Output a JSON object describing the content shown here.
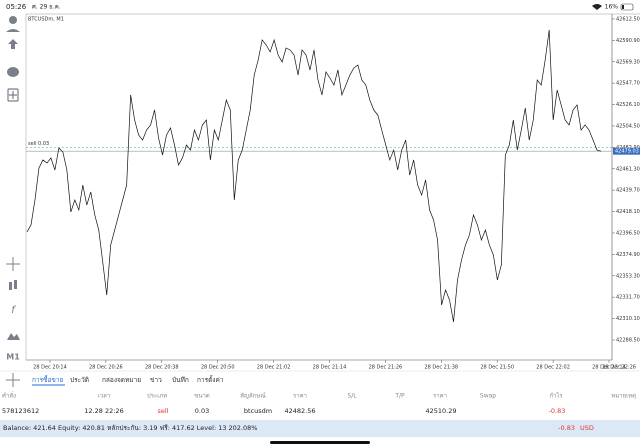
{
  "status_bar": {
    "time": "05:26",
    "date": "ศ. 29 ธ.ค.",
    "battery": "16%"
  },
  "chart": {
    "type": "line",
    "symbol": "BTCUSDm, M1",
    "color": "#111111",
    "ylim": [
      42268.3,
      42617.5
    ],
    "yticks": [
      {
        "value": 42612.5,
        "label": "42612.50"
      },
      {
        "value": 42590.9,
        "label": "42590.90"
      },
      {
        "value": 42569.3,
        "label": "42569.30"
      },
      {
        "value": 42547.7,
        "label": "42547.70"
      },
      {
        "value": 42526.1,
        "label": "42526.10"
      },
      {
        "value": 42504.5,
        "label": "42504.50"
      },
      {
        "value": 42482.9,
        "label": "42482.90"
      },
      {
        "value": 42461.3,
        "label": "42461.30"
      },
      {
        "value": 42439.7,
        "label": "42439.70"
      },
      {
        "value": 42418.1,
        "label": "42418.10"
      },
      {
        "value": 42396.5,
        "label": "42396.50"
      },
      {
        "value": 42374.9,
        "label": "42374.90"
      },
      {
        "value": 42353.3,
        "label": "42353.30"
      },
      {
        "value": 42331.7,
        "label": "42331.70"
      },
      {
        "value": 42310.1,
        "label": "42310.10"
      },
      {
        "value": 42288.5,
        "label": "42288.50"
      }
    ],
    "xticks": [
      "28 Dec 20:14",
      "28 Dec 20:26",
      "28 Dec 20:38",
      "28 Dec 20:50",
      "28 Dec 21:02",
      "28 Dec 21:14",
      "28 Dec 21:26",
      "28 Dec 21:38",
      "28 Dec 21:50",
      "28 Dec 22:02",
      "28 Dec 22:14",
      "28 Dec 22:26"
    ],
    "values": [
      42397.5,
      42404.6,
      42429.8,
      42462.1,
      42470.2,
      42467.1,
      42472.2,
      42460.1,
      42482.3,
      42478.2,
      42460.1,
      42417.7,
      42429.8,
      42419.7,
      42444.9,
      42424.7,
      42437.9,
      42414.7,
      42399.5,
      42367.2,
      42333.9,
      42384.4,
      42399.5,
      42414.7,
      42429.8,
      42444.9,
      42535.8,
      42510.5,
      42495.4,
      42490.3,
      42500.4,
      42505.5,
      42520.6,
      42492.4,
      42475.2,
      42495.4,
      42502.5,
      42485.3,
      42465.1,
      42472.2,
      42485.3,
      42480.2,
      42500.4,
      42490.3,
      42505.5,
      42510.5,
      42470.2,
      42500.4,
      42490.3,
      42510.5,
      42530.7,
      42520.6,
      42429.8,
      42470.2,
      42480.2,
      42500.4,
      42520.6,
      42555.9,
      42571.1,
      42591.3,
      42586.2,
      42579.2,
      42591.3,
      42576.1,
      42569.1,
      42583.2,
      42581.2,
      42576.1,
      42555.9,
      42581.2,
      42576.1,
      42561.0,
      42581.2,
      42550.9,
      42535.8,
      42559.0,
      42552.9,
      42545.8,
      42561.0,
      42535.8,
      42545.8,
      42555.9,
      42563.0,
      42566.0,
      42550.9,
      42545.8,
      42530.7,
      42520.6,
      42515.6,
      42500.4,
      42485.3,
      42470.2,
      42480.2,
      42460.1,
      42480.2,
      42490.3,
      42455.0,
      42470.2,
      42444.9,
      42434.8,
      42450.0,
      42419.7,
      42409.6,
      42389.4,
      42323.8,
      42339.0,
      42328.9,
      42306.7,
      42349.1,
      42369.2,
      42384.4,
      42394.5,
      42414.7,
      42404.6,
      42389.4,
      42399.5,
      42384.4,
      42374.3,
      42349.1,
      42364.2,
      42475.2,
      42485.3,
      42510.5,
      42480.2,
      42500.4,
      42522.6,
      42490.3,
      42510.5,
      42550.9,
      42545.8,
      42571.1,
      42601.4,
      42510.5,
      42540.8,
      42525.7,
      42510.5,
      42505.5,
      42520.6,
      42525.7,
      42500.4,
      42505.5,
      42500.4,
      42490.3,
      42480.2,
      42479.0
    ],
    "order_line": {
      "label": "sell 0.03",
      "value": 42482.56
    },
    "bid": 42479.03
  },
  "timeframe": "M1",
  "tabs": [
    "การซื้อขาย",
    "ประวัติ",
    "กล่องจดหมาย",
    "ข่าว",
    "บันทึก",
    "การตั้งค่า"
  ],
  "table": {
    "columns": [
      "คำสั่ง",
      "เวลา",
      "ประเภท",
      "ขนาด",
      "สัญลักษณ์",
      "ราคา",
      "S/L",
      "T/P",
      "ราคา",
      "Swap",
      "กำไร",
      "หมายเหตุ"
    ],
    "rows": [
      [
        "578123612",
        "12.28 22:26",
        "sell",
        "0.03",
        "btcusdm",
        "42482.56",
        null,
        null,
        "42510.29",
        null,
        "-0.83",
        null
      ]
    ]
  },
  "footer": {
    "summary": "Balance: 421.64 Equity: 420.81 หลักประกัน: 3.19 ฟรี: 417.62 Level: 13 202.08%",
    "profit": "-0.83",
    "currency": "USD"
  }
}
